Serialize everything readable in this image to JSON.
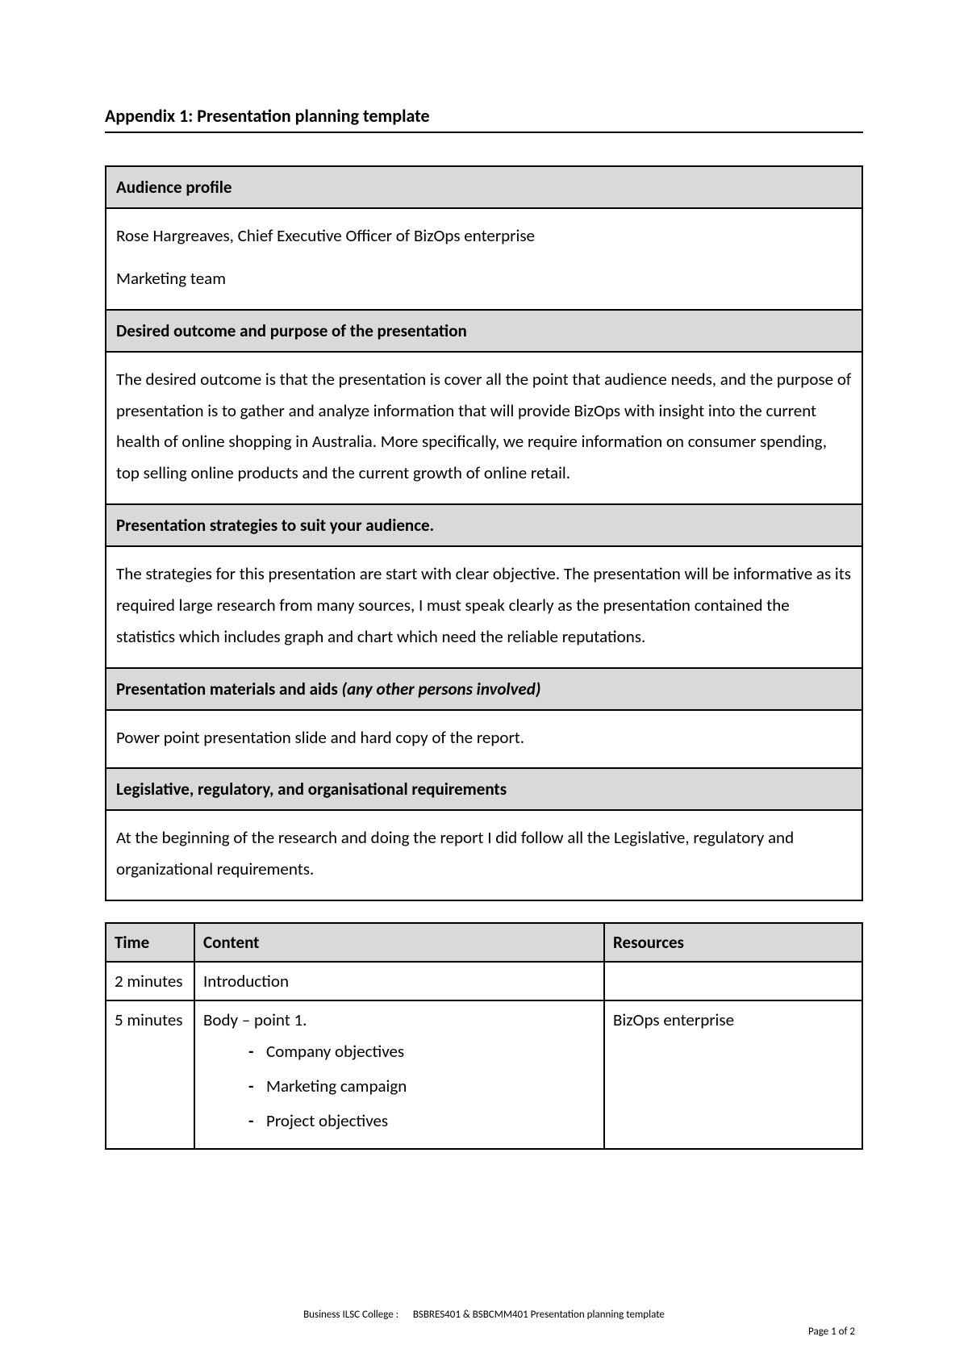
{
  "title": "Appendix 1: Presentation planning template",
  "sections": {
    "audience": {
      "header": "Audience profile",
      "p1": "Rose Hargreaves, Chief Executive Officer of BizOps enterprise",
      "p2": "Marketing team"
    },
    "outcome": {
      "header": "Desired outcome and purpose of the presentation",
      "p1": "The desired outcome is that the presentation is cover all the point that audience needs, and the purpose of presentation is to gather and analyze information that will provide BizOps with insight into the current health of online shopping in Australia. More specifically, we require information on consumer spending, top selling online products and the current growth of online retail."
    },
    "strategies": {
      "header": "Presentation strategies to suit your audience.",
      "p1": "The strategies for this presentation are start with clear objective. The presentation will be informative as its required large research from many sources, I must speak clearly as the presentation contained the statistics which includes graph and chart which need the reliable reputations."
    },
    "materials": {
      "header_prefix": "Presentation materials and aids ",
      "header_italic": "(any other persons involved)",
      "p1": "Power point presentation slide and hard copy of the report."
    },
    "legislative": {
      "header": "Legislative, regulatory, and organisational requirements",
      "p1": "At the beginning of the research and doing the report I did follow all the Legislative, regulatory and organizational requirements."
    }
  },
  "schedule": {
    "columns": {
      "time": "Time",
      "content": "Content",
      "resources": "Resources"
    },
    "rows": [
      {
        "time": "2 minutes",
        "content_title": "Introduction",
        "bullets": [],
        "resources": ""
      },
      {
        "time": "5 minutes",
        "content_title": "Body – point 1.",
        "bullets": [
          "Company objectives",
          "Marketing campaign",
          "Project objectives"
        ],
        "resources": "BizOps enterprise"
      }
    ]
  },
  "footer": {
    "line1_left": "Business ILSC College :",
    "line1_right": "BSBRES401 & BSBCMM401 Presentation planning template",
    "line2": "Page 1 of 2"
  },
  "colors": {
    "header_bg": "#d9d9d9",
    "border": "#000000",
    "text": "#000000",
    "page_bg": "#ffffff"
  }
}
